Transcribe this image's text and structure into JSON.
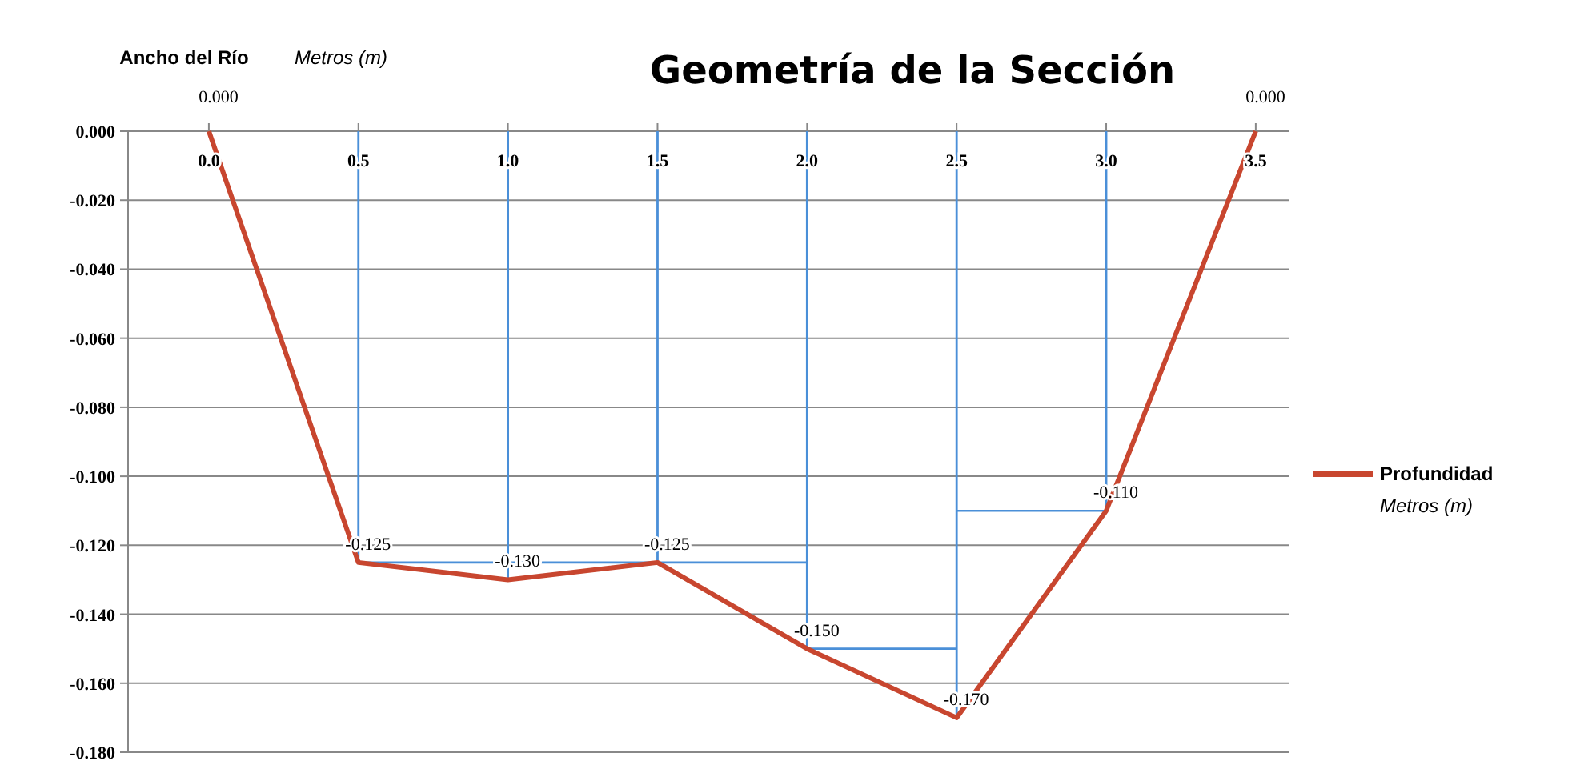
{
  "chart_data": {
    "type": "line",
    "title": "Geometría de la Sección",
    "xlabel": "Metros (m)",
    "annotations": [
      "Ancho del Río",
      "Metros (m)"
    ],
    "xlim": [
      -0.27,
      3.61
    ],
    "xticks": [
      {
        "value": 0,
        "label": "0.0"
      },
      {
        "value": 0.5,
        "label": "0.5"
      },
      {
        "value": 1,
        "label": "1.0"
      },
      {
        "value": 1.5,
        "label": "1.5"
      },
      {
        "value": 2,
        "label": "2.0"
      },
      {
        "value": 2.5,
        "label": "2.5"
      },
      {
        "value": 3,
        "label": "3.0"
      },
      {
        "value": 3.5,
        "label": "3.5"
      }
    ],
    "ylim": [
      -0.18,
      0
    ],
    "yticks": [
      {
        "value": 0,
        "label": "0.000"
      },
      {
        "value": -0.02,
        "label": "-0.020"
      },
      {
        "value": -0.04,
        "label": "-0.040"
      },
      {
        "value": -0.06,
        "label": "-0.060"
      },
      {
        "value": -0.08,
        "label": "-0.080"
      },
      {
        "value": -0.1,
        "label": "-0.100"
      },
      {
        "value": -0.12,
        "label": "-0.120"
      },
      {
        "value": -0.14,
        "label": "-0.140"
      },
      {
        "value": -0.16,
        "label": "-0.160"
      },
      {
        "value": -0.18,
        "label": "-0.180"
      }
    ],
    "grid": "y",
    "legend": "right",
    "series": [
      {
        "type": "bar",
        "color": "#4a8fd8",
        "x": [
          0.5,
          1.0,
          1.5,
          2.0,
          2.5,
          3.0
        ],
        "values": [
          -0.125,
          -0.13,
          -0.125,
          -0.15,
          -0.17,
          -0.11
        ]
      },
      {
        "color": "#4a8fd8",
        "x": [
          0.5,
          2.0
        ],
        "values": [
          -0.125,
          -0.125
        ]
      },
      {
        "color": "#4a8fd8",
        "x": [
          2.0,
          2.5
        ],
        "values": [
          -0.15,
          -0.15
        ]
      },
      {
        "color": "#4a8fd8",
        "x": [
          2.5,
          3.0
        ],
        "values": [
          -0.11,
          -0.11
        ]
      },
      {
        "name": "Profundidad",
        "color": "#c8462f",
        "x": [
          0,
          0.5,
          1.0,
          1.5,
          2.0,
          2.5,
          3.0,
          3.5
        ],
        "values": [
          0,
          -0.125,
          -0.13,
          -0.125,
          -0.15,
          -0.17,
          -0.11,
          0
        ],
        "value_labels": [
          "0.000",
          "-0.125",
          "-0.130",
          "-0.125",
          "-0.150",
          "-0.170",
          "-0.110",
          "0.000"
        ]
      }
    ]
  }
}
